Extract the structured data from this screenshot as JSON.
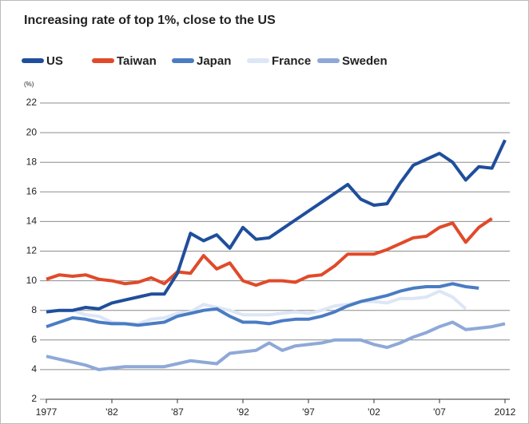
{
  "chart_data": {
    "type": "line",
    "title": "Increasing rate of top 1%, close to the US",
    "y_unit": "(%)",
    "x": [
      1977,
      1978,
      1979,
      1980,
      1981,
      1982,
      1983,
      1984,
      1985,
      1986,
      1987,
      1988,
      1989,
      1990,
      1991,
      1992,
      1993,
      1994,
      1995,
      1996,
      1997,
      1998,
      1999,
      2000,
      2001,
      2002,
      2003,
      2004,
      2005,
      2006,
      2007,
      2008,
      2009,
      2010,
      2011,
      2012
    ],
    "series": [
      {
        "name": "US",
        "color": "#1f4e9c",
        "values": [
          7.9,
          8.0,
          8.0,
          8.2,
          8.1,
          8.5,
          8.7,
          8.9,
          9.1,
          9.1,
          10.5,
          13.2,
          12.7,
          13.1,
          12.2,
          13.6,
          12.8,
          12.9,
          13.5,
          14.1,
          14.7,
          15.3,
          15.9,
          16.5,
          15.5,
          15.1,
          15.2,
          16.6,
          17.8,
          18.2,
          18.6,
          18.0,
          16.8,
          17.7,
          17.6,
          19.5
        ]
      },
      {
        "name": "Taiwan",
        "color": "#e04a2a",
        "values": [
          10.1,
          10.4,
          10.3,
          10.4,
          10.1,
          10.0,
          9.8,
          9.9,
          10.2,
          9.8,
          10.6,
          10.5,
          11.7,
          10.8,
          11.2,
          10.0,
          9.7,
          10.0,
          10.0,
          9.9,
          10.3,
          10.4,
          11.0,
          11.8,
          11.8,
          11.8,
          12.1,
          12.5,
          12.9,
          13.0,
          13.6,
          13.9,
          12.6,
          13.6,
          14.2,
          null
        ]
      },
      {
        "name": "Japan",
        "color": "#4a7cc4",
        "values": [
          6.9,
          7.2,
          7.5,
          7.4,
          7.2,
          7.1,
          7.1,
          7.0,
          7.1,
          7.2,
          7.6,
          7.8,
          8.0,
          8.1,
          7.6,
          7.2,
          7.2,
          7.1,
          7.3,
          7.4,
          7.4,
          7.6,
          7.9,
          8.3,
          8.6,
          8.8,
          9.0,
          9.3,
          9.5,
          9.6,
          9.6,
          9.8,
          9.6,
          9.5,
          null,
          null
        ]
      },
      {
        "name": "France",
        "color": "#dce6f5",
        "values": [
          8.0,
          8.0,
          8.0,
          7.7,
          7.6,
          7.2,
          7.1,
          7.1,
          7.4,
          7.5,
          7.8,
          7.9,
          8.4,
          8.2,
          8.0,
          7.7,
          7.7,
          7.7,
          7.8,
          7.9,
          7.8,
          8.0,
          8.3,
          8.4,
          8.6,
          8.6,
          8.5,
          8.8,
          8.8,
          8.9,
          9.3,
          8.9,
          8.1,
          null,
          null,
          null
        ]
      },
      {
        "name": "Sweden",
        "color": "#8ea8d8",
        "values": [
          4.9,
          4.7,
          4.5,
          4.3,
          4.0,
          4.1,
          4.2,
          4.2,
          4.2,
          4.2,
          4.4,
          4.6,
          4.5,
          4.4,
          5.1,
          5.2,
          5.3,
          5.8,
          5.3,
          5.6,
          5.7,
          5.8,
          6.0,
          6.0,
          6.0,
          5.7,
          5.5,
          5.8,
          6.2,
          6.5,
          6.9,
          7.2,
          6.7,
          6.8,
          6.9,
          7.1
        ]
      }
    ],
    "xlim": [
      1977,
      2012
    ],
    "xticks": [
      1977,
      {
        "value": 1982,
        "label": "'82"
      },
      {
        "value": 1987,
        "label": "'87"
      },
      {
        "value": 1992,
        "label": "'92"
      },
      {
        "value": 1997,
        "label": "'97"
      },
      {
        "value": 2002,
        "label": "'02"
      },
      {
        "value": 2007,
        "label": "'07"
      },
      2012
    ],
    "ylim": [
      2,
      22
    ],
    "yticks": [
      2,
      4,
      6,
      8,
      10,
      12,
      14,
      16,
      18,
      20,
      22
    ],
    "grid": true
  }
}
